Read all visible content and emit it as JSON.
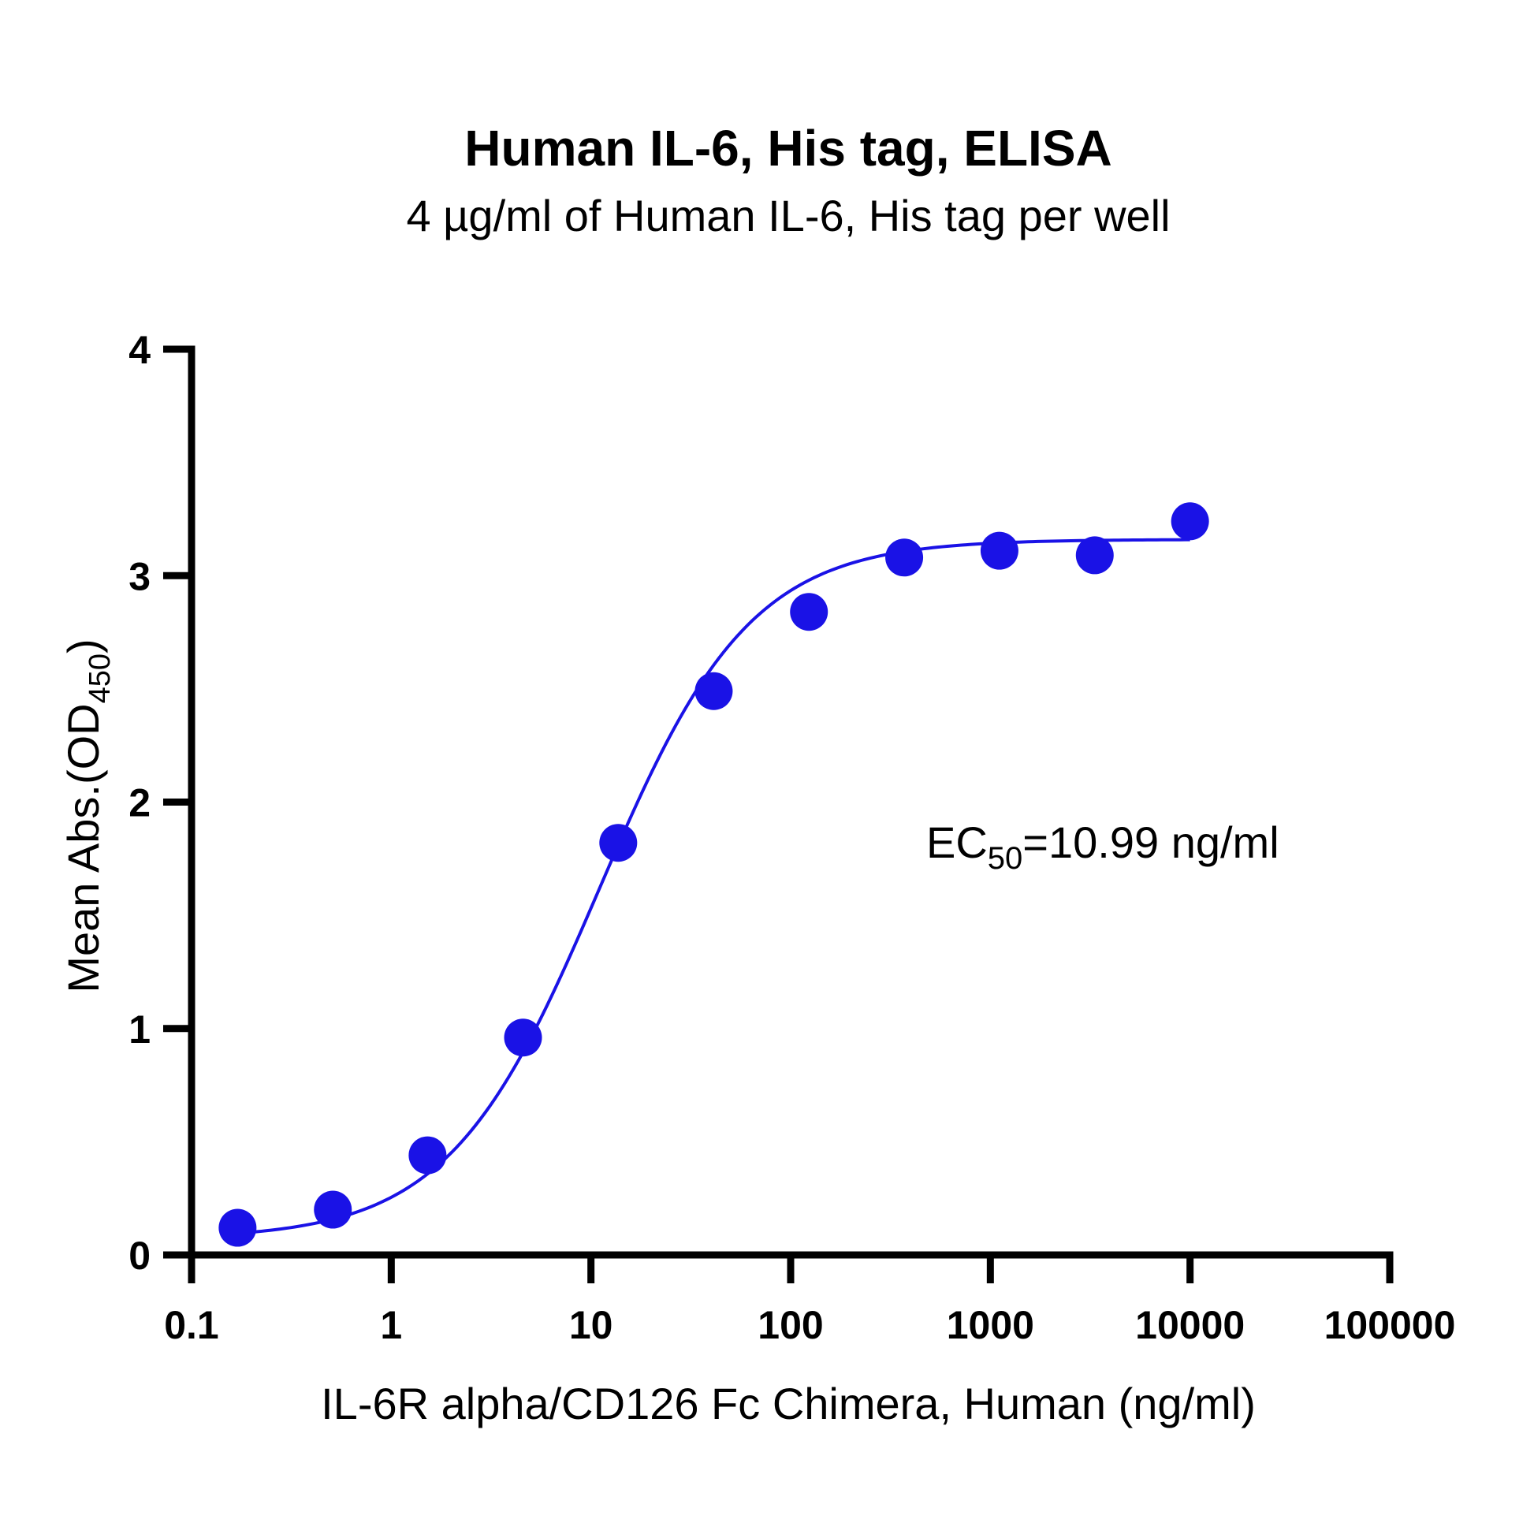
{
  "chart_data": {
    "type": "scatter",
    "title": "Human IL-6, His tag, ELISA",
    "subtitle": "4 µg/ml of Human IL-6, His tag per well",
    "xlabel": "IL-6R alpha/CD126 Fc Chimera, Human (ng/ml)",
    "ylabel": {
      "main": "Mean Abs.(OD",
      "sub": "450",
      "close": ")"
    },
    "x_scale": "log",
    "xlim": [
      0.1,
      100000
    ],
    "ylim": [
      0,
      4
    ],
    "x_ticks": [
      "0.1",
      "1",
      "10",
      "100",
      "1000",
      "10000",
      "100000"
    ],
    "y_ticks": [
      "0",
      "1",
      "2",
      "3",
      "4"
    ],
    "grid": false,
    "series": [
      {
        "points": [
          {
            "x": 0.17,
            "y": 0.12
          },
          {
            "x": 0.51,
            "y": 0.2
          },
          {
            "x": 1.52,
            "y": 0.44
          },
          {
            "x": 4.57,
            "y": 0.96
          },
          {
            "x": 13.7,
            "y": 1.82
          },
          {
            "x": 41.2,
            "y": 2.49
          },
          {
            "x": 123.5,
            "y": 2.84
          },
          {
            "x": 370.4,
            "y": 3.08
          },
          {
            "x": 1111,
            "y": 3.11
          },
          {
            "x": 3333,
            "y": 3.09
          },
          {
            "x": 10000,
            "y": 3.24
          }
        ],
        "fit": {
          "model": "4PL",
          "bottom": 0.07,
          "top": 3.16,
          "ec50": 10.99,
          "hill": 1.15
        },
        "color": "#1a12e6"
      }
    ],
    "annotation": {
      "prefix": "EC",
      "sub": "50",
      "suffix": "=10.99 ng/ml"
    }
  }
}
